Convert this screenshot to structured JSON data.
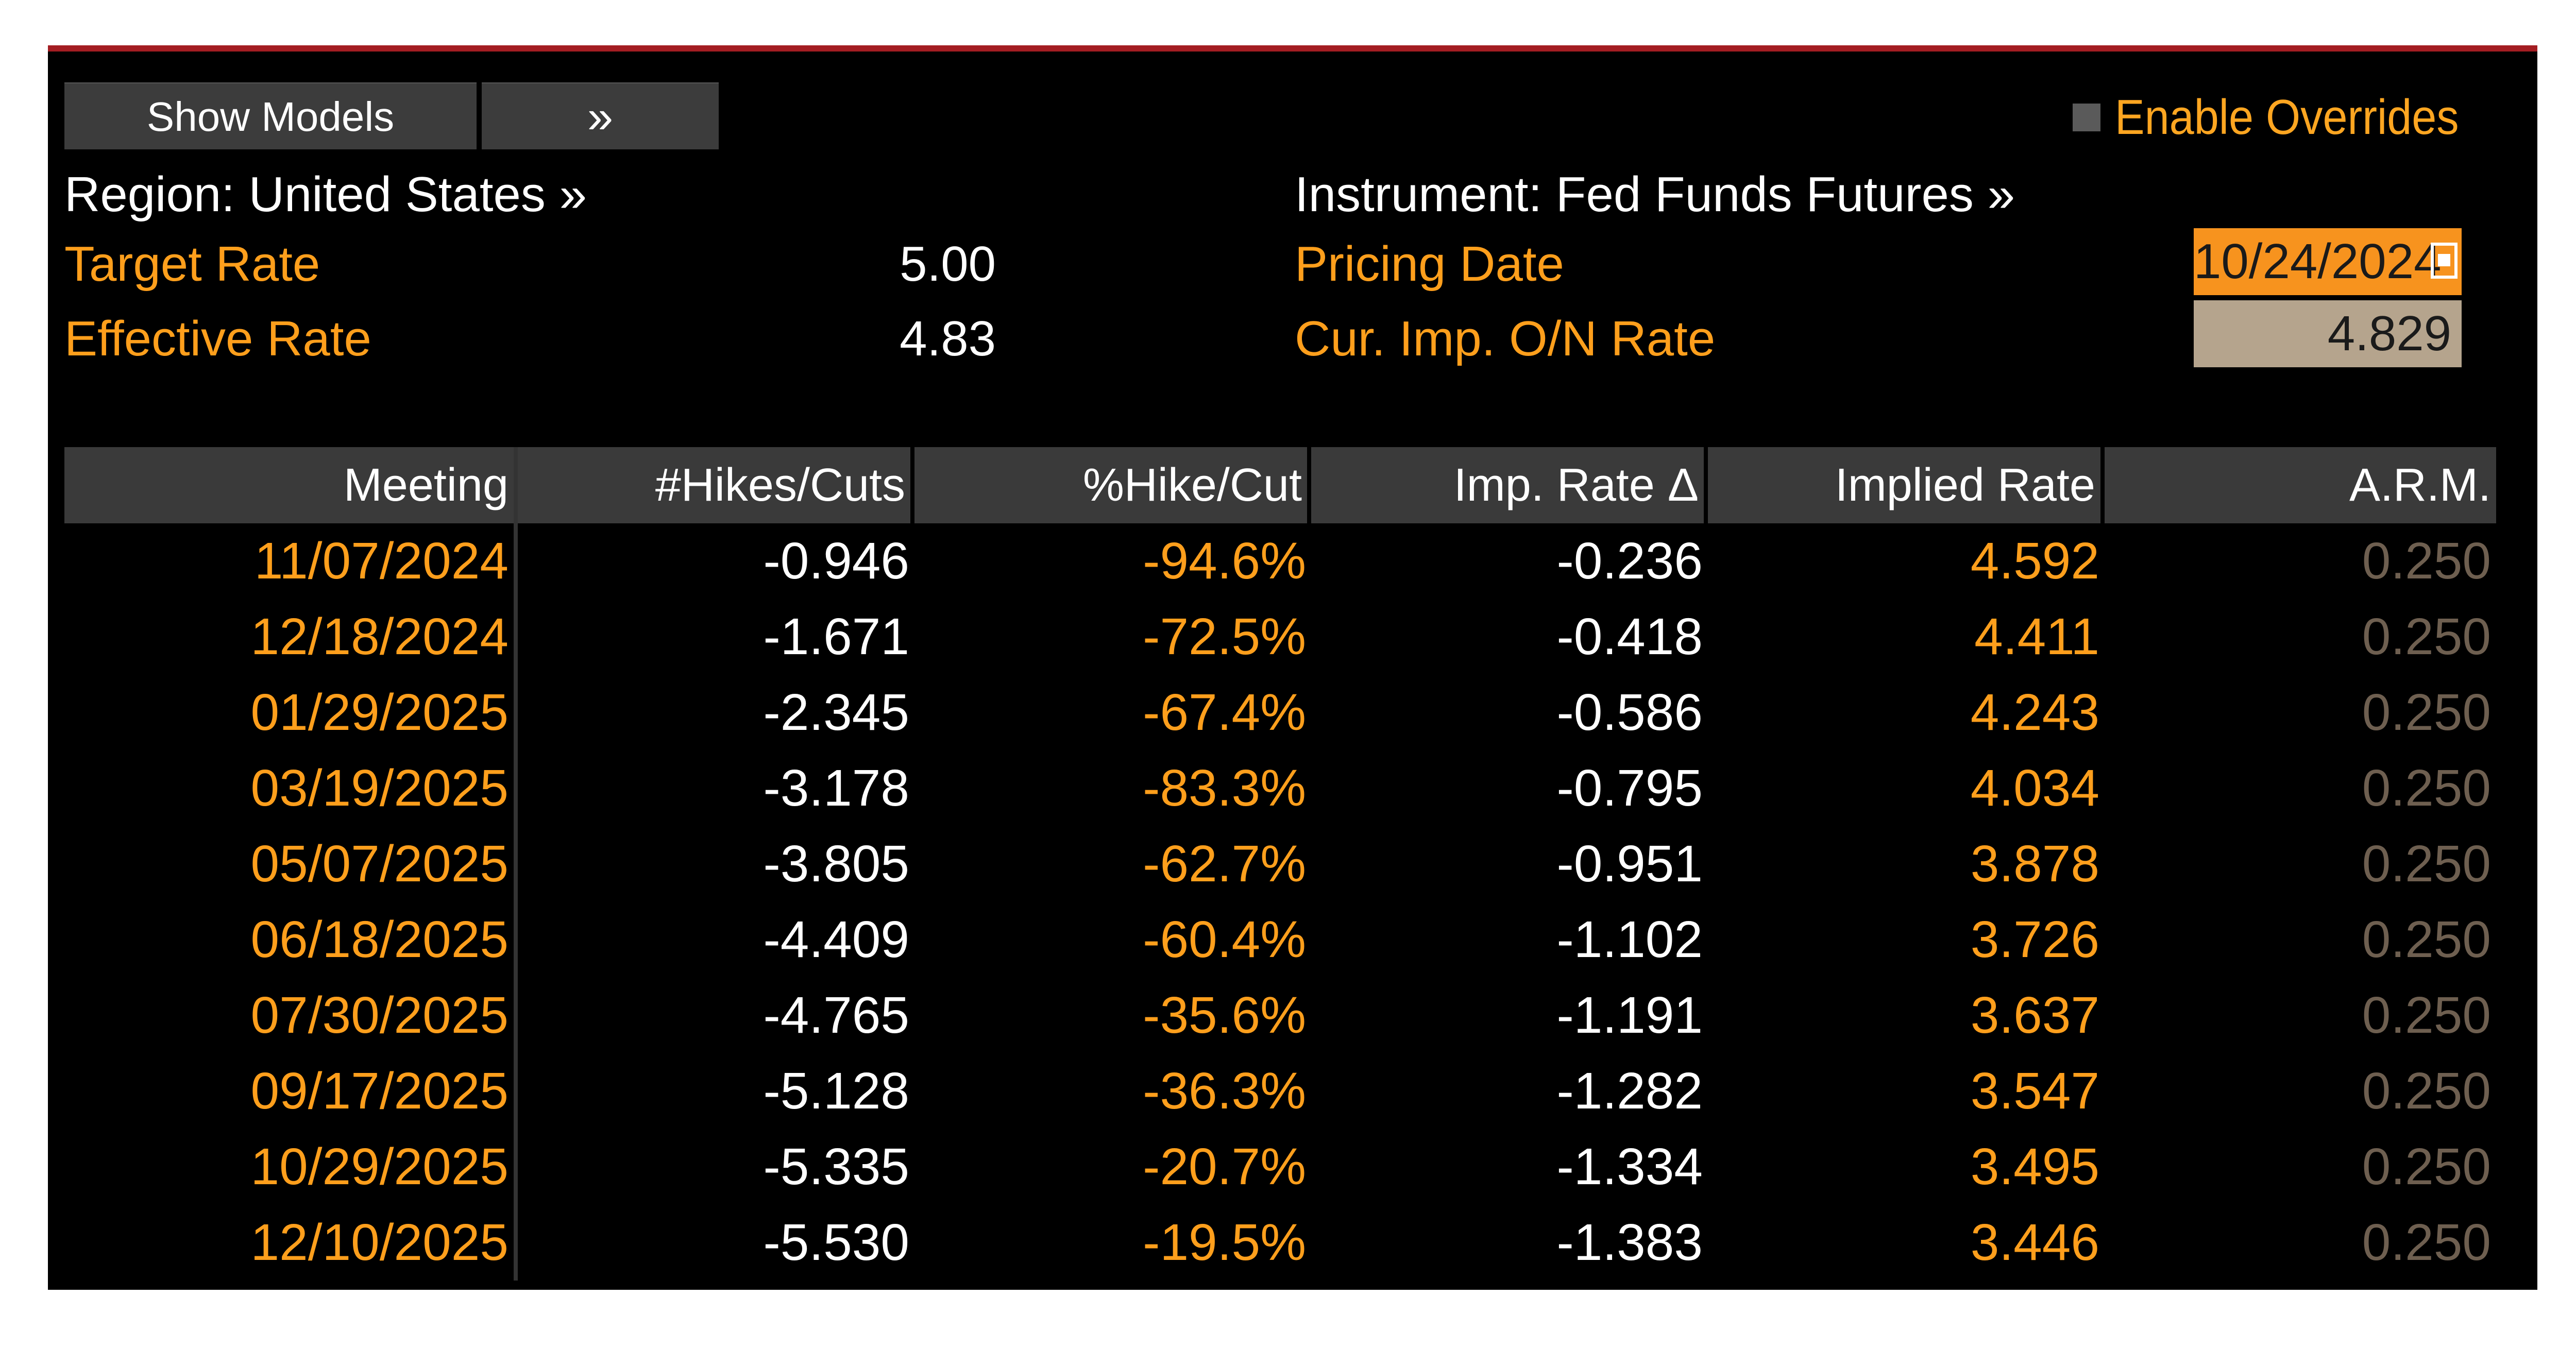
{
  "toolbar": {
    "show_models_label": "Show Models",
    "expand_label": "»",
    "enable_overrides_label": "Enable Overrides",
    "enable_overrides_checked": false
  },
  "header": {
    "region_label": "Region: United States »",
    "instrument_label": "Instrument: Fed Funds Futures »",
    "target_rate_label": "Target Rate",
    "target_rate_value": "5.00",
    "effective_rate_label": "Effective Rate",
    "effective_rate_value": "4.83",
    "pricing_date_label": "Pricing Date",
    "pricing_date_value": "10/24/2024",
    "cur_imp_label": "Cur. Imp. O/N Rate",
    "cur_imp_value": "4.829"
  },
  "table": {
    "columns": [
      "Meeting",
      "#Hikes/Cuts",
      "%Hike/Cut",
      "Imp. Rate Δ",
      "Implied Rate",
      "A.R.M."
    ],
    "rows": [
      [
        "11/07/2024",
        "-0.946",
        "-94.6%",
        "-0.236",
        "4.592",
        "0.250"
      ],
      [
        "12/18/2024",
        "-1.671",
        "-72.5%",
        "-0.418",
        "4.411",
        "0.250"
      ],
      [
        "01/29/2025",
        "-2.345",
        "-67.4%",
        "-0.586",
        "4.243",
        "0.250"
      ],
      [
        "03/19/2025",
        "-3.178",
        "-83.3%",
        "-0.795",
        "4.034",
        "0.250"
      ],
      [
        "05/07/2025",
        "-3.805",
        "-62.7%",
        "-0.951",
        "3.878",
        "0.250"
      ],
      [
        "06/18/2025",
        "-4.409",
        "-60.4%",
        "-1.102",
        "3.726",
        "0.250"
      ],
      [
        "07/30/2025",
        "-4.765",
        "-35.6%",
        "-1.191",
        "3.637",
        "0.250"
      ],
      [
        "09/17/2025",
        "-5.128",
        "-36.3%",
        "-1.282",
        "3.547",
        "0.250"
      ],
      [
        "10/29/2025",
        "-5.335",
        "-20.7%",
        "-1.334",
        "3.495",
        "0.250"
      ],
      [
        "12/10/2025",
        "-5.530",
        "-19.5%",
        "-1.383",
        "3.446",
        "0.250"
      ]
    ]
  },
  "colors": {
    "accent_orange": "#ff9f1c",
    "top_rule": "#a31d22",
    "date_field_bg": "#f7931e",
    "rate_field_bg": "#b5a48d",
    "arm_text": "#6e5f50"
  }
}
